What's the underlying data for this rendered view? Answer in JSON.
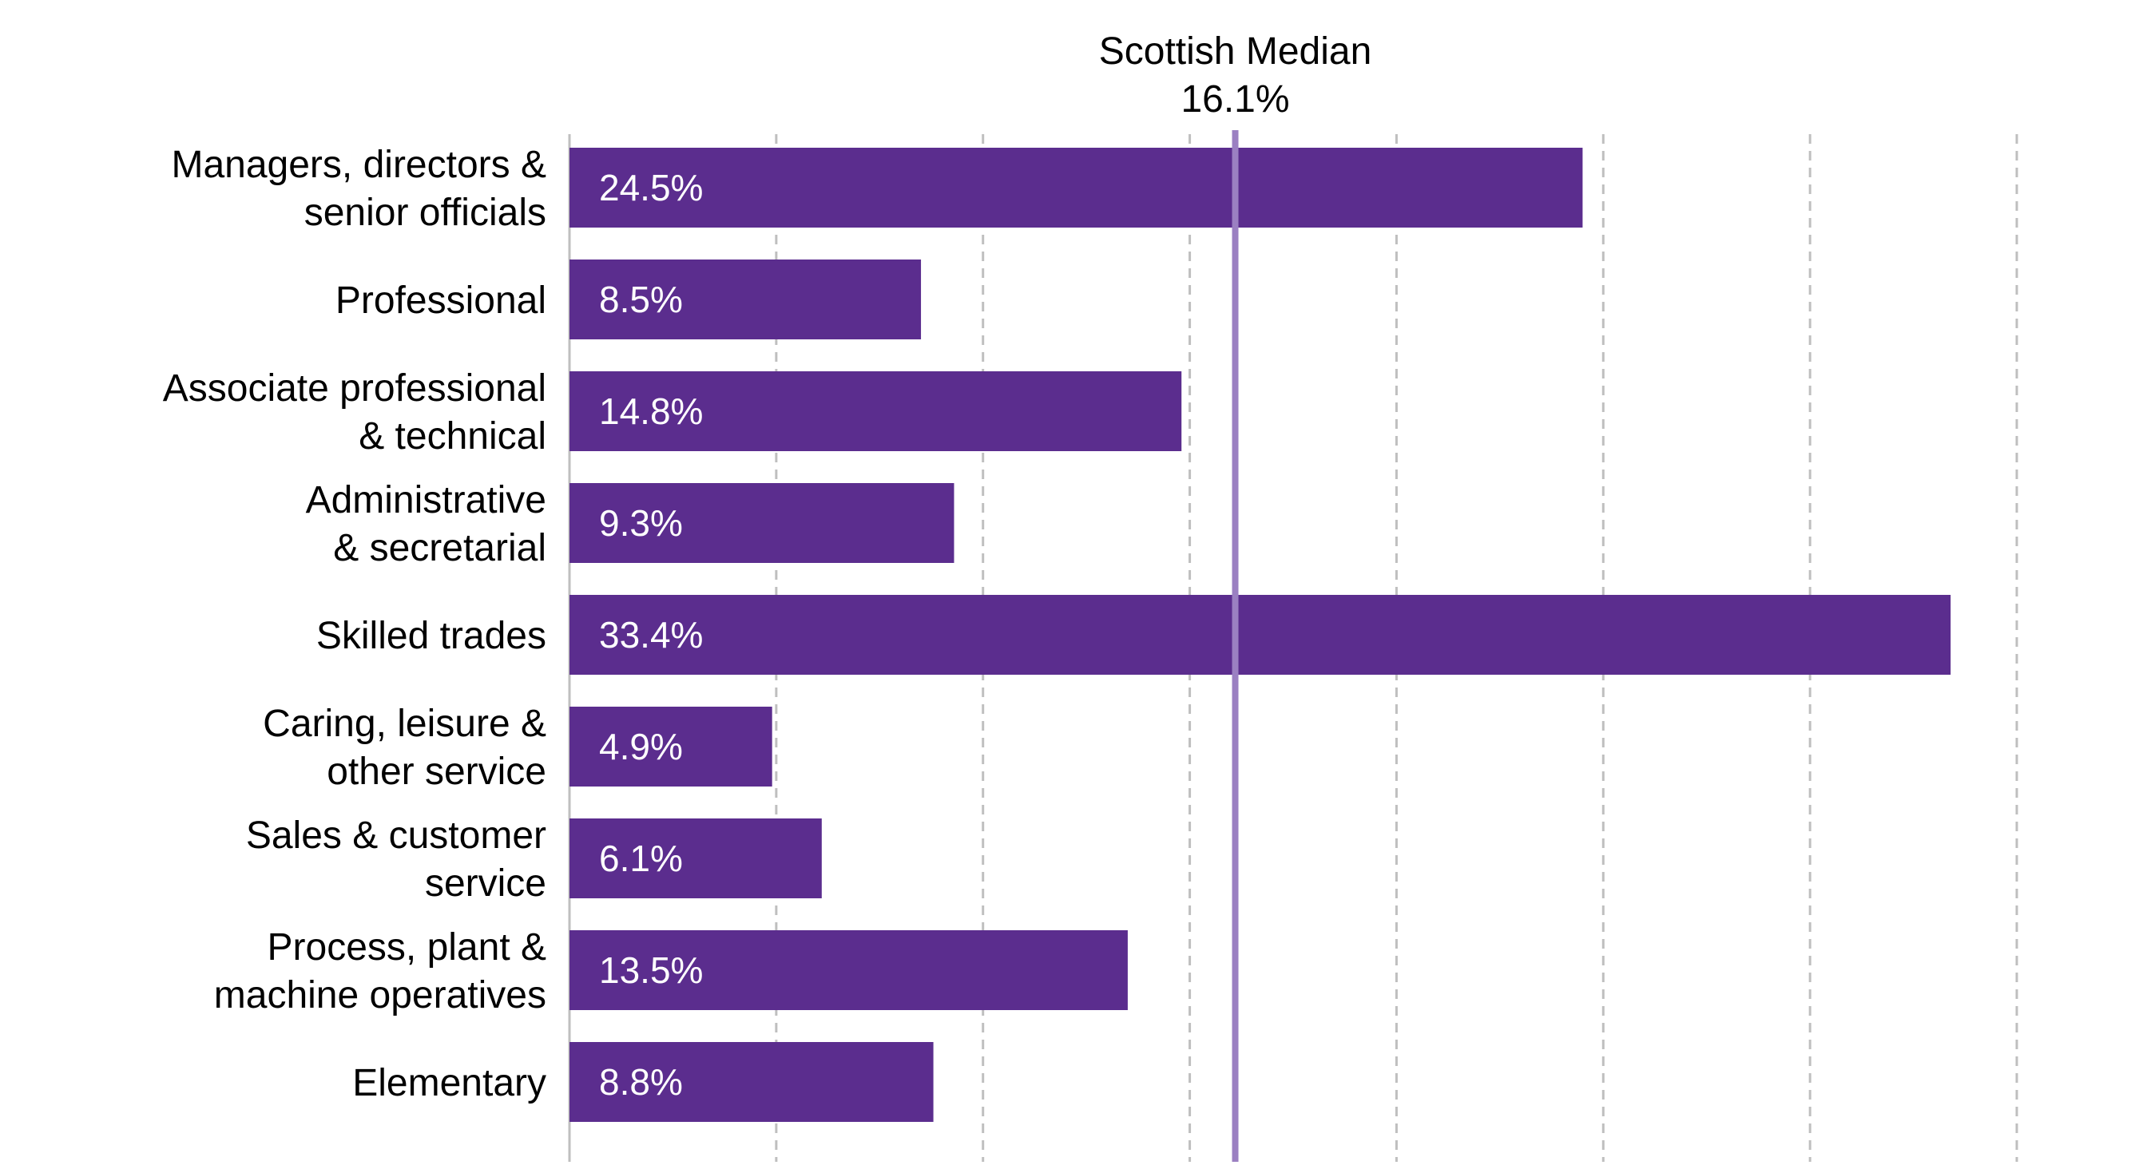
{
  "chart_data": {
    "type": "bar",
    "orientation": "horizontal",
    "categories": [
      [
        "Managers, directors &",
        "senior officials"
      ],
      [
        "Professional"
      ],
      [
        "Associate professional",
        "& technical "
      ],
      [
        "Administrative",
        "& secretarial"
      ],
      [
        "Skilled trades"
      ],
      [
        "Caring, leisure &",
        "other service"
      ],
      [
        "Sales & customer",
        "service"
      ],
      [
        "Process, plant &",
        "machine operatives"
      ],
      [
        "Elementary"
      ]
    ],
    "values": [
      24.5,
      8.5,
      14.8,
      9.3,
      33.4,
      4.9,
      6.1,
      13.5,
      8.8
    ],
    "value_labels": [
      "24.5%",
      "8.5%",
      "14.8%",
      "9.3%",
      "33.4%",
      "4.9%",
      "6.1%",
      "13.5%",
      "8.8%"
    ],
    "xlim": [
      0,
      35
    ],
    "x_grid_step": 5,
    "grid": "vertical dashed",
    "reference_line": {
      "value": 16.1,
      "label_lines": [
        "Scottish Median",
        "16.1%"
      ]
    },
    "colors": {
      "bar": "#5b2d8e",
      "reference_line": "#9b80c2",
      "grid": "#bfbfbf",
      "axis": "#bfbfbf"
    }
  }
}
